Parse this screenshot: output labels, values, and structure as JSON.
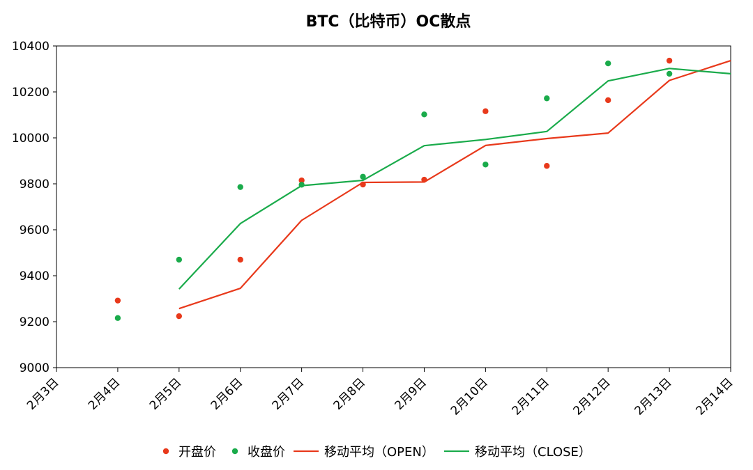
{
  "chart_data": {
    "type": "scatter",
    "title": "BTC（比特币）OC散点",
    "xlabel": "",
    "ylabel": "",
    "categories": [
      "2月3日",
      "2月4日",
      "2月5日",
      "2月6日",
      "2月7日",
      "2月8日",
      "2月9日",
      "2月10日",
      "2月11日",
      "2月12日",
      "2月13日",
      "2月14日"
    ],
    "ylim": [
      9000,
      10400
    ],
    "yticks": [
      "9000",
      "9200",
      "9400",
      "9600",
      "9800",
      "10000",
      "10200",
      "10400"
    ],
    "grid": false,
    "legend_position": "bottom",
    "series": [
      {
        "name": "开盘价",
        "kind": "scatter",
        "color": "#E8391B",
        "values": [
          null,
          9292,
          9224,
          9470,
          9815,
          9797,
          9818,
          10116,
          9878,
          10164,
          10336,
          null
        ]
      },
      {
        "name": "收盘价",
        "kind": "scatter",
        "color": "#1AAB4B",
        "values": [
          null,
          9216,
          9470,
          9786,
          9796,
          9831,
          10102,
          9884,
          10172,
          10324,
          10279,
          null
        ]
      },
      {
        "name": "移动平均（OPEN）",
        "kind": "line",
        "color": "#E8391B",
        "values": [
          null,
          null,
          9257,
          9345,
          9641,
          9806,
          9808,
          9967,
          9997,
          10021,
          10250,
          10336
        ]
      },
      {
        "name": "移动平均（CLOSE）",
        "kind": "line",
        "color": "#1AAB4B",
        "values": [
          null,
          null,
          9342,
          9627,
          9792,
          9815,
          9966,
          9993,
          10028,
          10248,
          10302,
          10279
        ]
      }
    ]
  }
}
